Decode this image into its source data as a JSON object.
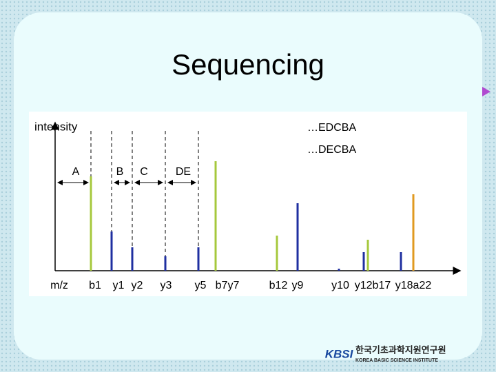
{
  "title": "Sequencing",
  "figure": {
    "y_label": "intensity",
    "sequences": [
      "…EDCBA",
      "…DECBA"
    ],
    "segments": [
      "A",
      "B",
      "C",
      "DE"
    ],
    "x_label": "m/z",
    "peak_labels": [
      "b1",
      "y1",
      "y2",
      "y3",
      "y5",
      "b7y7",
      "b12",
      "y9",
      "y10",
      "y12b17",
      "y18a22"
    ]
  },
  "logo": {
    "mark": "KBSI",
    "name": "한국기초과학지원연구원",
    "name_en": "KOREA BASIC SCIENCE INSTITUTE"
  }
}
